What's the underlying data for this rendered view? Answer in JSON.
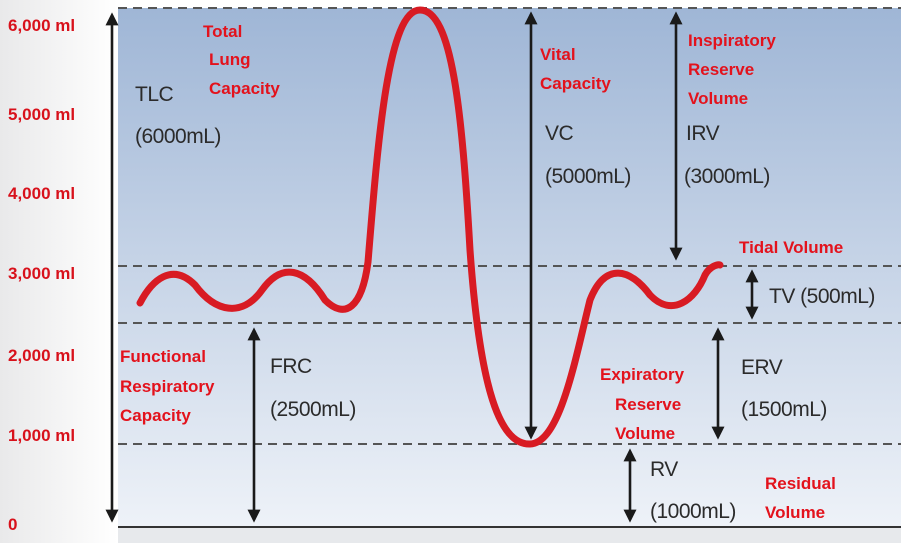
{
  "chart_data": {
    "type": "line",
    "title": "",
    "xlabel": "",
    "ylabel": "",
    "ylim": [
      0,
      6000
    ],
    "y_ticks": [
      "6,000 ml",
      "5,000 ml",
      "4,000 ml",
      "3,000 ml",
      "2,000 ml",
      "1,000 ml",
      "0"
    ],
    "reference_lines_ml": [
      6000,
      3000,
      2500,
      1000
    ],
    "series": [
      {
        "name": "Lung volume trace",
        "color": "#d81b23",
        "x": [
          0,
          2,
          5,
          8,
          11,
          14,
          18,
          21,
          24,
          27,
          30,
          34,
          37,
          40,
          43,
          47,
          49,
          52,
          56,
          60,
          63,
          66,
          69,
          71
        ],
        "values": [
          2700,
          2900,
          2600,
          2900,
          2600,
          2700,
          5800,
          6000,
          5600,
          2500,
          1200,
          1000,
          1500,
          2900,
          2950,
          2650,
          2650,
          2950,
          3000,
          3000,
          3000,
          3000,
          3000,
          3000
        ]
      }
    ]
  },
  "measures": {
    "tlc": {
      "abbr": "TLC",
      "value": "(6000mL)",
      "name_lines": [
        "Total",
        "Lung",
        "Capacity"
      ]
    },
    "vc": {
      "abbr": "VC",
      "value": "(5000mL)",
      "name_lines": [
        "Vital",
        "Capacity"
      ]
    },
    "irv": {
      "abbr": "IRV",
      "value": "(3000mL)",
      "name_lines": [
        "Inspiratory",
        "Reserve",
        "Volume"
      ]
    },
    "tv": {
      "text": "TV (500mL)",
      "name": "Tidal Volume"
    },
    "frc": {
      "abbr": "FRC",
      "value": "(2500mL)",
      "name_lines": [
        "Functional",
        "Respiratory",
        "Capacity"
      ]
    },
    "erv": {
      "abbr": "ERV",
      "value": "(1500mL)",
      "name_lines": [
        "Expiratory",
        "Reserve",
        "Volume"
      ]
    },
    "rv": {
      "abbr": "RV",
      "value": "(1000mL)",
      "name_lines": [
        "Residual",
        "Volume"
      ]
    }
  },
  "colors": {
    "panel_top": "#9fb6d6",
    "panel_bottom": "#eef2f8",
    "curve": "#d81b23",
    "label_red": "#e3121c",
    "tick_red": "#d8111b"
  }
}
